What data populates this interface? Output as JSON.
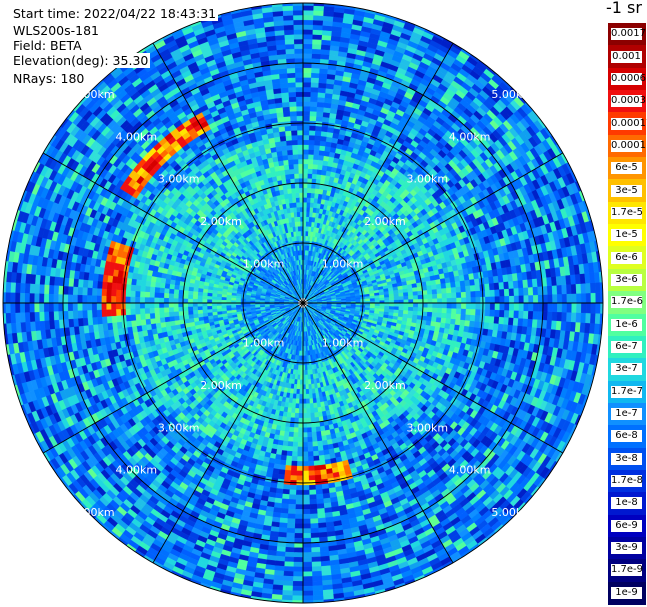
{
  "info": {
    "start_time": "Start time: 2022/04/22 18:43:31",
    "instrument": "WLS200s-181",
    "field": "Field: BETA",
    "elevation": "Elevation(deg): 35.30",
    "nrays": "NRays: 180"
  },
  "chart_data": {
    "type": "heatmap",
    "projection": "polar",
    "title": "",
    "rings_km": [
      1,
      2,
      3,
      4,
      5
    ],
    "ring_labels": [
      "1.00km",
      "2.00km",
      "3.00km",
      "4.00km",
      "5.00km"
    ],
    "max_range_km": 5.0,
    "spokes": 12,
    "colorbar": {
      "title": "-1 sr",
      "ticks": [
        "0.0017",
        "0.001",
        "0.0006",
        "0.0003",
        "0.00017",
        "0.0001",
        "6e-5",
        "3e-5",
        "1.7e-5",
        "1e-5",
        "6e-6",
        "3e-6",
        "1.7e-6",
        "1e-6",
        "6e-7",
        "3e-7",
        "1.7e-7",
        "1e-7",
        "6e-8",
        "3e-8",
        "1.7e-8",
        "1e-8",
        "6e-9",
        "3e-9",
        "1.7e-9",
        "1e-9"
      ],
      "colors": [
        "#8b0000",
        "#b00000",
        "#d60000",
        "#f01010",
        "#ff3a00",
        "#ff6a00",
        "#ff9500",
        "#ffc000",
        "#ffe600",
        "#ffff00",
        "#dfff20",
        "#b8ff40",
        "#80ff80",
        "#50ffa0",
        "#30f0c0",
        "#20d8e0",
        "#10b8f0",
        "#1090ff",
        "#0070ff",
        "#0050f0",
        "#0030e0",
        "#0018d0",
        "#0000c0",
        "#0000a0",
        "#000080",
        "#000060"
      ]
    }
  }
}
